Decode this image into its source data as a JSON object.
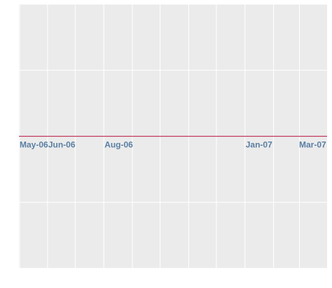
{
  "chart_data": {
    "type": "line",
    "title": "",
    "xlabel": "",
    "ylabel": "",
    "grid": true,
    "x_axis": {
      "type": "date",
      "range": [
        "2006-05-01",
        "2007-03-31"
      ],
      "labeled_ticks": [
        {
          "date": "2006-05-01",
          "label": "May-06"
        },
        {
          "date": "2006-06-01",
          "label": "Jun-06"
        },
        {
          "date": "2006-08-01",
          "label": "Aug-06"
        },
        {
          "date": "2007-01-01",
          "label": "Jan-07"
        },
        {
          "date": "2007-03-01",
          "label": "Mar-07"
        }
      ],
      "label_placement": "along the zero line"
    },
    "y_axis": {
      "range": [
        -1,
        1
      ],
      "gridlines": [
        -1,
        -0.5,
        0,
        0.5,
        1
      ],
      "tick_labels_shown": false
    },
    "series": [
      {
        "color": "#c0395b",
        "points": [
          {
            "x": "2006-05-01",
            "y": 0
          },
          {
            "x": "2007-03-31",
            "y": 0
          }
        ]
      }
    ],
    "colors": {
      "panel_background": "#ebebeb",
      "grid": "#ffffff",
      "tick_label": "#5a7fa3",
      "line": "#c0395b"
    }
  }
}
